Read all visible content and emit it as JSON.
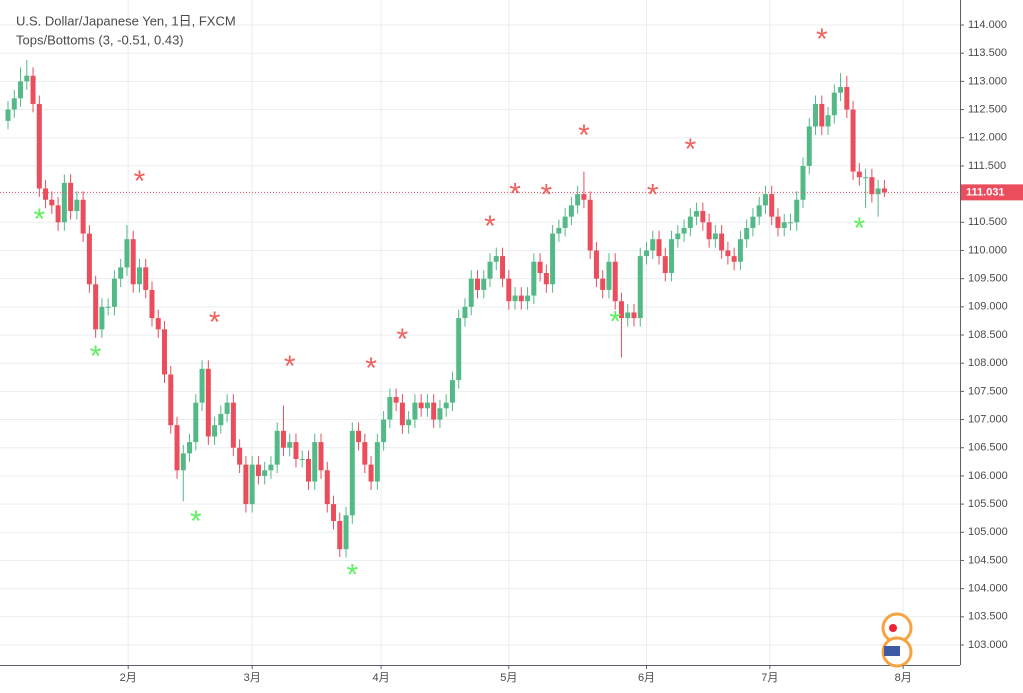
{
  "chart_data": {
    "type": "candlestick",
    "title": "U.S. Dollar/Japanese Yen, 1日, FXCM",
    "subtitle": "Tops/Bottoms (3, -0.51, 0.43)",
    "up_color": "#53b987",
    "down_color": "#eb4d5c",
    "ohlc": [
      [
        112.3,
        112.65,
        112.15,
        112.5
      ],
      [
        112.5,
        112.85,
        112.35,
        112.7
      ],
      [
        112.7,
        113.25,
        112.55,
        113.0
      ],
      [
        113.0,
        113.38,
        112.85,
        113.1
      ],
      [
        113.1,
        113.25,
        112.45,
        112.6
      ],
      [
        112.6,
        112.75,
        110.95,
        111.1
      ],
      [
        111.1,
        111.25,
        110.75,
        110.9
      ],
      [
        110.9,
        111.05,
        110.65,
        110.8
      ],
      [
        110.8,
        110.95,
        110.35,
        110.5
      ],
      [
        110.5,
        111.35,
        110.35,
        111.2
      ],
      [
        111.2,
        111.35,
        110.55,
        110.7
      ],
      [
        110.7,
        111.05,
        110.55,
        110.9
      ],
      [
        110.9,
        111.05,
        110.15,
        110.3
      ],
      [
        110.3,
        110.45,
        109.25,
        109.4
      ],
      [
        109.4,
        109.55,
        108.45,
        108.6
      ],
      [
        108.6,
        109.15,
        108.45,
        109.0
      ],
      [
        109.0,
        109.15,
        108.85,
        109.0
      ],
      [
        109.0,
        109.65,
        108.85,
        109.5
      ],
      [
        109.5,
        109.85,
        109.35,
        109.7
      ],
      [
        109.7,
        110.45,
        109.55,
        110.2
      ],
      [
        110.2,
        110.35,
        109.25,
        109.4
      ],
      [
        109.4,
        109.85,
        109.25,
        109.7
      ],
      [
        109.7,
        109.85,
        109.15,
        109.3
      ],
      [
        109.3,
        109.45,
        108.65,
        108.8
      ],
      [
        108.8,
        108.95,
        108.45,
        108.6
      ],
      [
        108.6,
        108.75,
        107.65,
        107.8
      ],
      [
        107.8,
        107.95,
        106.75,
        106.9
      ],
      [
        106.9,
        107.05,
        105.95,
        106.1
      ],
      [
        106.1,
        106.55,
        105.55,
        106.4
      ],
      [
        106.4,
        106.75,
        106.25,
        106.6
      ],
      [
        106.6,
        107.45,
        106.45,
        107.3
      ],
      [
        107.3,
        108.05,
        107.15,
        107.9
      ],
      [
        107.9,
        108.05,
        106.55,
        106.7
      ],
      [
        106.7,
        107.05,
        106.55,
        106.9
      ],
      [
        106.9,
        107.25,
        106.75,
        107.1
      ],
      [
        107.1,
        107.45,
        106.95,
        107.3
      ],
      [
        107.3,
        107.45,
        106.35,
        106.5
      ],
      [
        106.5,
        106.65,
        106.05,
        106.2
      ],
      [
        106.2,
        106.35,
        105.35,
        105.5
      ],
      [
        105.5,
        106.35,
        105.35,
        106.2
      ],
      [
        106.2,
        106.35,
        105.85,
        106.0
      ],
      [
        106.0,
        106.25,
        105.85,
        106.1
      ],
      [
        106.1,
        106.35,
        105.95,
        106.2
      ],
      [
        106.2,
        106.95,
        106.05,
        106.8
      ],
      [
        106.8,
        107.25,
        106.35,
        106.5
      ],
      [
        106.5,
        106.75,
        106.35,
        106.6
      ],
      [
        106.6,
        106.75,
        106.15,
        106.3
      ],
      [
        106.3,
        106.45,
        106.15,
        106.3
      ],
      [
        106.3,
        106.45,
        105.75,
        105.9
      ],
      [
        105.9,
        106.75,
        105.75,
        106.6
      ],
      [
        106.6,
        106.75,
        105.95,
        106.1
      ],
      [
        106.1,
        106.25,
        105.35,
        105.5
      ],
      [
        105.5,
        105.65,
        105.05,
        105.2
      ],
      [
        105.2,
        105.35,
        104.56,
        104.7
      ],
      [
        104.7,
        105.45,
        104.55,
        105.3
      ],
      [
        105.3,
        106.95,
        105.15,
        106.8
      ],
      [
        106.8,
        106.95,
        106.45,
        106.6
      ],
      [
        106.6,
        106.75,
        106.05,
        106.2
      ],
      [
        106.2,
        106.35,
        105.75,
        105.9
      ],
      [
        105.9,
        106.75,
        105.75,
        106.6
      ],
      [
        106.6,
        107.15,
        106.45,
        107.0
      ],
      [
        107.0,
        107.55,
        106.85,
        107.4
      ],
      [
        107.4,
        107.55,
        107.15,
        107.3
      ],
      [
        107.3,
        107.45,
        106.75,
        106.9
      ],
      [
        106.9,
        107.15,
        106.75,
        107.0
      ],
      [
        107.0,
        107.45,
        106.85,
        107.3
      ],
      [
        107.3,
        107.45,
        107.05,
        107.2
      ],
      [
        107.2,
        107.45,
        107.05,
        107.3
      ],
      [
        107.3,
        107.45,
        106.85,
        107.0
      ],
      [
        107.0,
        107.35,
        106.85,
        107.2
      ],
      [
        107.2,
        107.45,
        107.05,
        107.3
      ],
      [
        107.3,
        107.85,
        107.15,
        107.7
      ],
      [
        107.7,
        108.95,
        107.55,
        108.8
      ],
      [
        108.8,
        109.15,
        108.65,
        109.0
      ],
      [
        109.0,
        109.65,
        108.85,
        109.5
      ],
      [
        109.5,
        109.65,
        109.15,
        109.3
      ],
      [
        109.3,
        109.65,
        109.15,
        109.5
      ],
      [
        109.5,
        109.95,
        109.35,
        109.8
      ],
      [
        109.8,
        110.05,
        109.65,
        109.9
      ],
      [
        109.9,
        110.05,
        109.35,
        109.5
      ],
      [
        109.5,
        109.65,
        108.95,
        109.1
      ],
      [
        109.1,
        109.35,
        108.95,
        109.2
      ],
      [
        109.2,
        109.35,
        108.95,
        109.1
      ],
      [
        109.1,
        109.35,
        108.95,
        109.2
      ],
      [
        109.2,
        109.95,
        109.05,
        109.8
      ],
      [
        109.8,
        109.95,
        109.45,
        109.6
      ],
      [
        109.6,
        109.75,
        109.25,
        109.4
      ],
      [
        109.4,
        110.45,
        109.25,
        110.3
      ],
      [
        110.3,
        110.55,
        110.15,
        110.4
      ],
      [
        110.4,
        110.75,
        110.25,
        110.6
      ],
      [
        110.6,
        110.95,
        110.45,
        110.8
      ],
      [
        110.8,
        111.15,
        110.65,
        111.0
      ],
      [
        111.0,
        111.4,
        110.75,
        110.9
      ],
      [
        110.9,
        111.05,
        109.85,
        110.0
      ],
      [
        110.0,
        110.15,
        109.35,
        109.5
      ],
      [
        109.5,
        109.65,
        109.15,
        109.3
      ],
      [
        109.3,
        109.95,
        109.15,
        109.8
      ],
      [
        109.8,
        109.95,
        108.95,
        109.1
      ],
      [
        109.1,
        109.25,
        108.1,
        108.8
      ],
      [
        108.8,
        109.05,
        108.65,
        108.9
      ],
      [
        108.9,
        109.05,
        108.65,
        108.8
      ],
      [
        108.8,
        110.05,
        108.65,
        109.9
      ],
      [
        109.9,
        110.15,
        109.75,
        110.0
      ],
      [
        110.0,
        110.35,
        109.85,
        110.2
      ],
      [
        110.2,
        110.35,
        109.75,
        109.9
      ],
      [
        109.9,
        110.05,
        109.45,
        109.6
      ],
      [
        109.6,
        110.35,
        109.45,
        110.2
      ],
      [
        110.2,
        110.45,
        110.05,
        110.3
      ],
      [
        110.3,
        110.55,
        110.15,
        110.4
      ],
      [
        110.4,
        110.75,
        110.25,
        110.6
      ],
      [
        110.6,
        110.85,
        110.45,
        110.7
      ],
      [
        110.7,
        110.85,
        110.35,
        110.5
      ],
      [
        110.5,
        110.65,
        110.05,
        110.2
      ],
      [
        110.2,
        110.45,
        110.05,
        110.3
      ],
      [
        110.3,
        110.45,
        109.85,
        110.0
      ],
      [
        110.0,
        110.15,
        109.75,
        109.9
      ],
      [
        109.9,
        110.05,
        109.65,
        109.8
      ],
      [
        109.8,
        110.35,
        109.65,
        110.2
      ],
      [
        110.2,
        110.55,
        110.05,
        110.4
      ],
      [
        110.4,
        110.75,
        110.25,
        110.6
      ],
      [
        110.6,
        110.95,
        110.45,
        110.8
      ],
      [
        110.8,
        111.15,
        110.65,
        111.0
      ],
      [
        111.0,
        111.15,
        110.45,
        110.6
      ],
      [
        110.6,
        110.75,
        110.25,
        110.4
      ],
      [
        110.4,
        110.65,
        110.25,
        110.5
      ],
      [
        110.5,
        110.65,
        110.35,
        110.5
      ],
      [
        110.5,
        111.05,
        110.35,
        110.9
      ],
      [
        110.9,
        111.65,
        110.75,
        111.5
      ],
      [
        111.5,
        112.35,
        111.35,
        112.2
      ],
      [
        112.2,
        112.75,
        112.05,
        112.6
      ],
      [
        112.6,
        112.75,
        112.05,
        112.2
      ],
      [
        112.2,
        112.55,
        112.05,
        112.4
      ],
      [
        112.4,
        112.95,
        112.25,
        112.8
      ],
      [
        112.8,
        113.15,
        112.65,
        112.9
      ],
      [
        112.9,
        113.1,
        112.35,
        112.5
      ],
      [
        112.5,
        112.65,
        111.25,
        111.4
      ],
      [
        111.4,
        111.55,
        111.15,
        111.3
      ],
      [
        111.3,
        111.45,
        110.75,
        111.3
      ],
      [
        111.3,
        111.45,
        110.85,
        111.0
      ],
      [
        111.0,
        111.25,
        110.6,
        111.1
      ],
      [
        111.1,
        111.25,
        110.95,
        111.031
      ]
    ],
    "tops": {
      "color": "#f0625f",
      "x": [
        21,
        33,
        45,
        58,
        63,
        77,
        81,
        86,
        92,
        103,
        109,
        130
      ],
      "y": [
        111.3,
        108.8,
        108.02,
        107.98,
        108.5,
        110.5,
        111.08,
        111.06,
        112.12,
        111.06,
        111.87,
        113.82
      ]
    },
    "bottoms": {
      "color": "#5ef05e",
      "x": [
        5,
        14,
        30,
        55,
        97,
        136
      ],
      "y": [
        110.63,
        108.2,
        105.27,
        104.32,
        108.81,
        110.47
      ]
    },
    "last_price": 111.031,
    "xlim": [
      -1.28,
      152.08
    ],
    "xticks": [
      {
        "value": 19.2,
        "label": "2月"
      },
      {
        "value": 39,
        "label": "3月"
      },
      {
        "value": 59.6,
        "label": "4月"
      },
      {
        "value": 80,
        "label": "5月"
      },
      {
        "value": 102,
        "label": "6月"
      },
      {
        "value": 121.7,
        "label": "7月"
      },
      {
        "value": 143,
        "label": "8月"
      }
    ],
    "ylim": [
      102.645,
      114.444
    ],
    "yticks": [
      {
        "value": 103,
        "label": "103.000"
      },
      {
        "value": 103.5,
        "label": "103.500"
      },
      {
        "value": 104,
        "label": "104.000"
      },
      {
        "value": 104.5,
        "label": "104.500"
      },
      {
        "value": 105,
        "label": "105.000"
      },
      {
        "value": 105.5,
        "label": "105.500"
      },
      {
        "value": 106,
        "label": "106.000"
      },
      {
        "value": 106.5,
        "label": "106.500"
      },
      {
        "value": 107,
        "label": "107.000"
      },
      {
        "value": 107.5,
        "label": "107.500"
      },
      {
        "value": 108,
        "label": "108.000"
      },
      {
        "value": 108.5,
        "label": "108.500"
      },
      {
        "value": 109,
        "label": "109.000"
      },
      {
        "value": 109.5,
        "label": "109.500"
      },
      {
        "value": 110,
        "label": "110.000"
      },
      {
        "value": 110.5,
        "label": "110.500"
      },
      {
        "value": 111,
        "label": "111.000"
      },
      {
        "value": 111.5,
        "label": "111.500"
      },
      {
        "value": 112,
        "label": "112.000"
      },
      {
        "value": 112.5,
        "label": "112.500"
      },
      {
        "value": 113,
        "label": "113.000"
      },
      {
        "value": 113.5,
        "label": "113.500"
      },
      {
        "value": 114,
        "label": "114.000"
      }
    ],
    "grid": true
  }
}
